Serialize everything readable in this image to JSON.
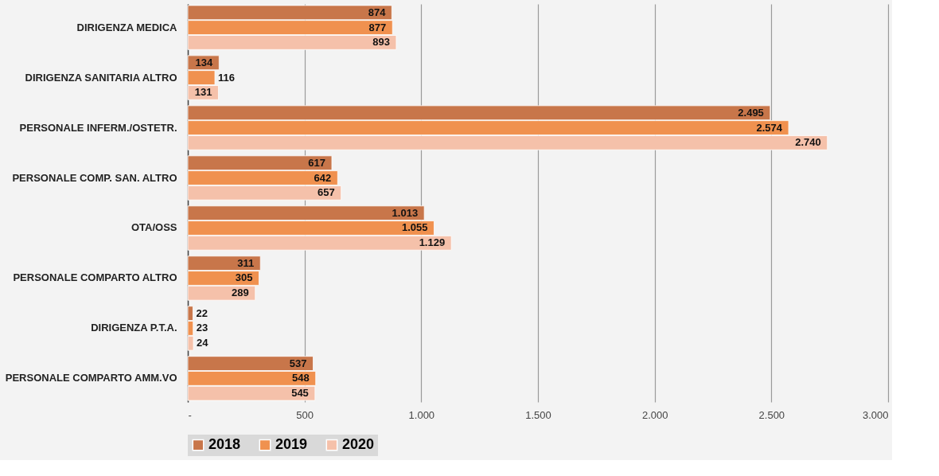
{
  "chart_data": {
    "type": "bar",
    "orientation": "horizontal",
    "categories": [
      "DIRIGENZA MEDICA",
      "DIRIGENZA SANITARIA ALTRO",
      "PERSONALE INFERM./OSTETR.",
      "PERSONALE COMP. SAN. ALTRO",
      "OTA/OSS",
      "PERSONALE COMPARTO ALTRO",
      "DIRIGENZA P.T.A.",
      "PERSONALE COMPARTO AMM.VO"
    ],
    "series": [
      {
        "name": "2018",
        "color": "#c8764a",
        "values": [
          874,
          134,
          2495,
          617,
          1013,
          311,
          22,
          537
        ],
        "value_labels": [
          "874",
          "134",
          "2.495",
          "617",
          "1.013",
          "311",
          "22",
          "537"
        ]
      },
      {
        "name": "2019",
        "color": "#f0914f",
        "values": [
          877,
          116,
          2574,
          642,
          1055,
          305,
          23,
          548
        ],
        "value_labels": [
          "877",
          "116",
          "2.574",
          "642",
          "1.055",
          "305",
          "23",
          "548"
        ]
      },
      {
        "name": "2020",
        "color": "#f5c1aa",
        "values": [
          893,
          131,
          2740,
          657,
          1129,
          289,
          24,
          545
        ],
        "value_labels": [
          "893",
          "131",
          "2.740",
          "657",
          "1.129",
          "289",
          "24",
          "545"
        ]
      }
    ],
    "xlim": [
      0,
      3000
    ],
    "xticks": [
      {
        "value": 0,
        "label": "-"
      },
      500,
      {
        "value": 1000,
        "label": "1.000"
      },
      {
        "value": 1500,
        "label": "1.500"
      },
      {
        "value": 2000,
        "label": "2.000"
      },
      {
        "value": 2500,
        "label": "2.500"
      },
      {
        "value": 3000,
        "label": "3.000"
      }
    ],
    "grid": "x",
    "legend": "bottom"
  }
}
